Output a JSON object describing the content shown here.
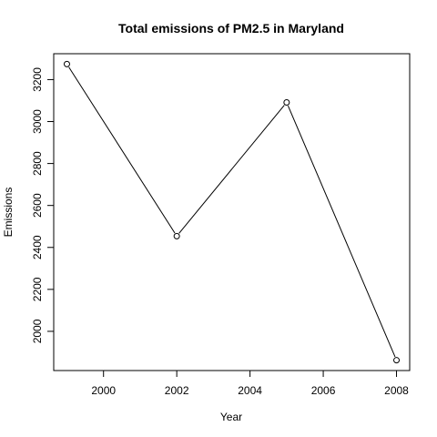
{
  "chart_data": {
    "type": "line",
    "title": "Total emissions of PM2.5 in Maryland",
    "xlabel": "Year",
    "ylabel": "Emissions",
    "x": [
      1999,
      2002,
      2005,
      2008
    ],
    "series": [
      {
        "values": [
          3274.18,
          2453.916,
          3091.354,
          1862.282
        ]
      }
    ],
    "xlim": [
      1998.64,
      2008.36
    ],
    "ylim": [
      1813.1,
      3323.4
    ],
    "xticks": [
      "2000",
      "2002",
      "2004",
      "2006",
      "2008"
    ],
    "yticks": [
      "2000",
      "2200",
      "2400",
      "2600",
      "2800",
      "3000",
      "3200"
    ],
    "markers": "open-circle",
    "line_color": "#000000",
    "grid": false,
    "legend": "none"
  }
}
